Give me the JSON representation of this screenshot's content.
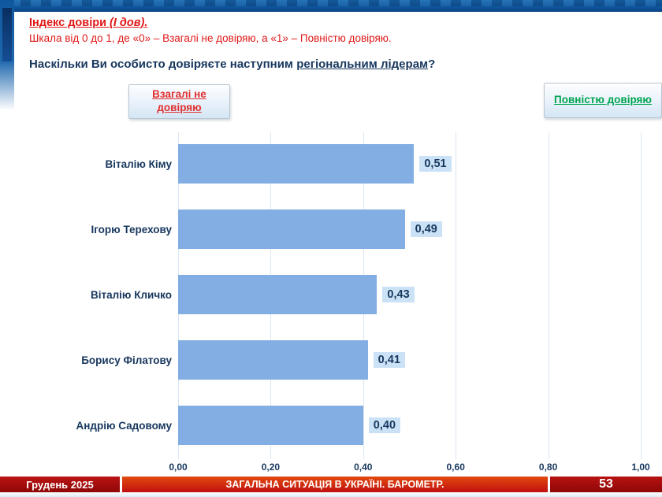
{
  "header": {
    "title_main": "Індекс довіри ",
    "title_italic": "(І дов).",
    "subtitle": "Шкала від 0 до 1, де «0» – Взагалі не довіряю, а «1» – Повністю довіряю.",
    "question_prefix": "Наскільки Ви особисто довіряєте наступним ",
    "question_underlined": "регіональним лідерам",
    "question_suffix": "?"
  },
  "scale_labels": {
    "left": "Взагалі не довіряю",
    "right": "Повністю довіряю"
  },
  "chart_data": {
    "type": "bar",
    "orientation": "horizontal",
    "title": "Наскільки Ви особисто довіряєте наступним регіональним лідерам?",
    "categories": [
      "Віталію Кіму",
      "Ігорю Терехову",
      "Віталію Кличко",
      "Борису Філатову",
      "Андрію Садовому"
    ],
    "values": [
      0.51,
      0.49,
      0.43,
      0.41,
      0.4
    ],
    "value_labels": [
      "0,51",
      "0,49",
      "0,43",
      "0,41",
      "0,40"
    ],
    "x_tick_labels": [
      "0,00",
      "0,20",
      "0,40",
      "0,60",
      "0,80",
      "1,00"
    ],
    "x_ticks": [
      0,
      0.2,
      0.4,
      0.6,
      0.8,
      1.0
    ],
    "xlim": [
      0,
      1
    ],
    "grid": true,
    "legend": false,
    "bar_color": "#82aee3",
    "value_chip_color": "#cbe2f6"
  },
  "footer": {
    "date": "Грудень 2025",
    "title": "ЗАГАЛЬНА СИТУАЦІЯ В УКРАЇНІ. БАРОМЕТР.",
    "page_number": "53"
  },
  "colors": {
    "accent_red_text": "#e01717",
    "accent_green_text": "#00a551",
    "navy_text": "#17375e",
    "bar_blue": "#82aee3",
    "gridline": "#d9e6f3",
    "footer_dark_red": "#8f0707",
    "footer_bright_red": "#e24a0e",
    "top_band_blue": "#0f579e"
  }
}
